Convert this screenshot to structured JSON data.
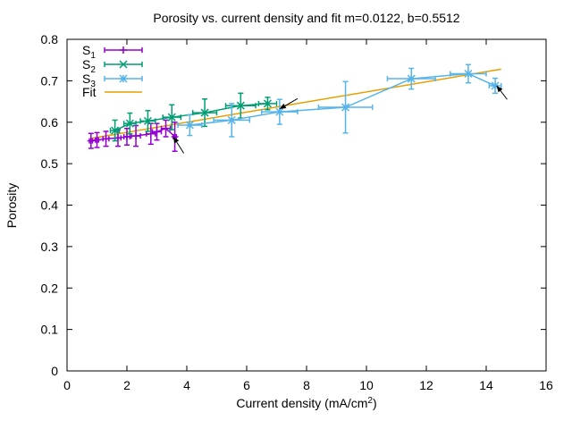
{
  "chart_data": {
    "type": "line",
    "title": "Porosity vs. current density and fit m=0.0122, b=0.5512",
    "xlabel_main": "Current density (mA/cm",
    "xlabel_sup": "2",
    "xlabel_tail": ")",
    "ylabel": "Porosity",
    "xlim": [
      0,
      16
    ],
    "ylim": [
      0,
      0.8
    ],
    "xticks": [
      "0",
      "2",
      "4",
      "6",
      "8",
      "10",
      "12",
      "14",
      "16"
    ],
    "yticks": [
      "0",
      "0.1",
      "0.2",
      "0.3",
      "0.4",
      "0.5",
      "0.6",
      "0.7",
      "0.8"
    ],
    "grid": false,
    "legend_position": "top-left",
    "colors": {
      "S1": "#9400d3",
      "S2": "#009e73",
      "S3": "#56b4e9",
      "Fit": "#e69f00",
      "arrow": "#000000"
    },
    "series": [
      {
        "name": "S",
        "sub": "1",
        "marker": "plus",
        "points": [
          {
            "x": 0.8,
            "y": 0.555,
            "xerr": 0.05,
            "yerr": 0.018
          },
          {
            "x": 1.0,
            "y": 0.557,
            "xerr": 0.05,
            "yerr": 0.018
          },
          {
            "x": 1.3,
            "y": 0.56,
            "xerr": 0.1,
            "yerr": 0.018
          },
          {
            "x": 1.7,
            "y": 0.562,
            "xerr": 0.1,
            "yerr": 0.02
          },
          {
            "x": 2.0,
            "y": 0.565,
            "xerr": 0.1,
            "yerr": 0.02
          },
          {
            "x": 2.3,
            "y": 0.567,
            "xerr": 0.15,
            "yerr": 0.025
          },
          {
            "x": 2.8,
            "y": 0.572,
            "xerr": 0.15,
            "yerr": 0.025
          },
          {
            "x": 3.0,
            "y": 0.577,
            "xerr": 0.15,
            "yerr": 0.02
          },
          {
            "x": 3.3,
            "y": 0.585,
            "xerr": 0.15,
            "yerr": 0.02
          },
          {
            "x": 3.6,
            "y": 0.565,
            "xerr": 0.05,
            "yerr": 0.035
          }
        ]
      },
      {
        "name": "S",
        "sub": "2",
        "marker": "cross",
        "points": [
          {
            "x": 1.6,
            "y": 0.58,
            "xerr": 0.15,
            "yerr": 0.025
          },
          {
            "x": 2.1,
            "y": 0.597,
            "xerr": 0.2,
            "yerr": 0.025
          },
          {
            "x": 2.7,
            "y": 0.603,
            "xerr": 0.25,
            "yerr": 0.025
          },
          {
            "x": 3.5,
            "y": 0.612,
            "xerr": 0.3,
            "yerr": 0.03
          },
          {
            "x": 4.6,
            "y": 0.623,
            "xerr": 0.4,
            "yerr": 0.033
          },
          {
            "x": 5.8,
            "y": 0.64,
            "xerr": 0.5,
            "yerr": 0.03
          },
          {
            "x": 6.7,
            "y": 0.645,
            "xerr": 0.3,
            "yerr": 0.015
          }
        ]
      },
      {
        "name": "S",
        "sub": "3",
        "marker": "star",
        "points": [
          {
            "x": 4.1,
            "y": 0.593,
            "xerr": 0.4,
            "yerr": 0.025
          },
          {
            "x": 5.5,
            "y": 0.605,
            "xerr": 0.6,
            "yerr": 0.04
          },
          {
            "x": 7.1,
            "y": 0.625,
            "xerr": 0.6,
            "yerr": 0.03
          },
          {
            "x": 9.3,
            "y": 0.636,
            "xerr": 0.9,
            "yerr": 0.062
          },
          {
            "x": 11.5,
            "y": 0.705,
            "xerr": 0.8,
            "yerr": 0.025
          },
          {
            "x": 13.4,
            "y": 0.717,
            "xerr": 0.6,
            "yerr": 0.022
          },
          {
            "x": 14.3,
            "y": 0.688,
            "xerr": 0.2,
            "yerr": 0.018
          }
        ]
      }
    ],
    "fit": {
      "name": "Fit",
      "m": 0.0122,
      "b": 0.5512,
      "x_range": [
        0.8,
        14.5
      ]
    },
    "annotations": [
      {
        "type": "arrow",
        "from": [
          3.9,
          0.525
        ],
        "to": [
          3.55,
          0.565
        ]
      },
      {
        "type": "arrow",
        "from": [
          7.7,
          0.657
        ],
        "to": [
          7.1,
          0.632
        ]
      },
      {
        "type": "arrow",
        "from": [
          14.7,
          0.655
        ],
        "to": [
          14.35,
          0.688
        ]
      }
    ]
  }
}
